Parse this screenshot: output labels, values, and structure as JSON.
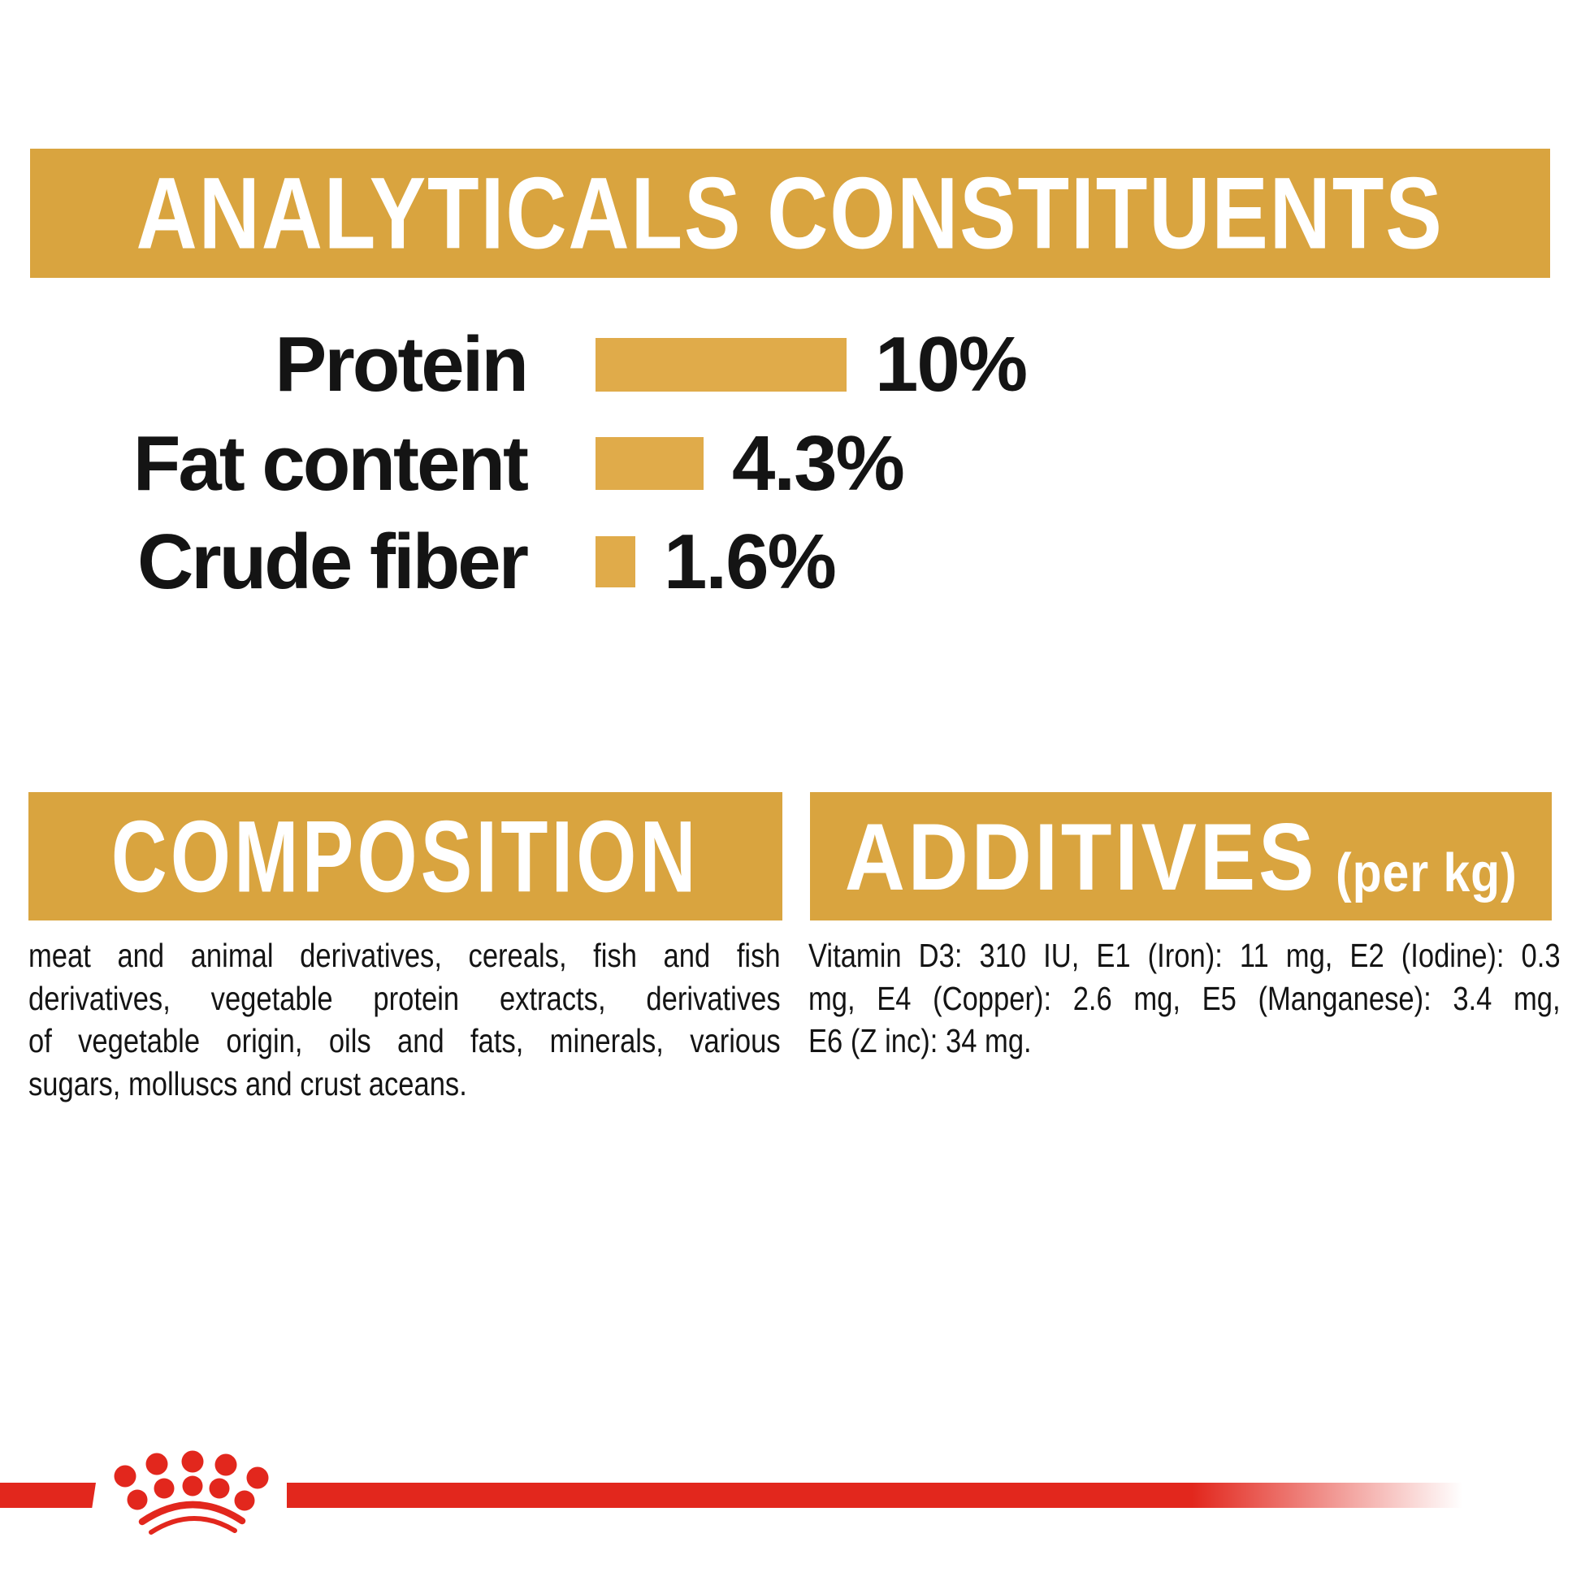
{
  "colors": {
    "gold_banner": "#D9A43F",
    "gold_bar": "#E0AB4A",
    "red": "#E2271D",
    "ink": "#141414",
    "banner_text": "#FFFFFF",
    "background": "#FFFFFF"
  },
  "chart_data": {
    "type": "bar",
    "orientation": "horizontal",
    "title": "ANALYTICALS CONSTITUENTS",
    "categories": [
      "Protein",
      "Fat content",
      "Crude fiber"
    ],
    "values": [
      10,
      4.3,
      1.6
    ],
    "value_labels": [
      "10%",
      "4.3%",
      "1.6%"
    ],
    "unit": "%",
    "xlim": [
      0,
      10
    ],
    "bar_color": "#E0AB4A",
    "legend": false,
    "gridlines": false
  },
  "composition": {
    "title": "COMPOSITION",
    "lines": [
      "meat and animal derivatives, cereals, fish and fish",
      "derivatives, vegetable protein extracts, derivatives",
      "of vegetable origin, oils and fats, minerals, various",
      "sugars, molluscs and crust aceans."
    ],
    "full_text": "meat and animal derivatives, cereals, fish and fish derivatives, vegetable protein extracts, derivatives of vegetable origin, oils and fats, minerals, various sugars, molluscs and crust aceans."
  },
  "additives": {
    "title": "ADDITIVES",
    "unit_label": "(per kg)",
    "lines": [
      "Vitamin D3: 310 IU, E1 (Iron): 11 mg, E2 (Iodine): 0.3",
      "mg, E4 (Copper): 2.6 mg, E5 (Manganese): 3.4 mg,",
      "E6 (Z inc): 34 mg."
    ],
    "full_text": "Vitamin D3: 310 IU, E1 (Iron): 11 mg, E2 (Iodine): 0.3 mg, E4 (Copper): 2.6 mg, E5 (Manganese): 3.4 mg, E6 (Z inc): 34 mg."
  },
  "footer": {
    "logo": "royal-canin-crown-paw"
  }
}
